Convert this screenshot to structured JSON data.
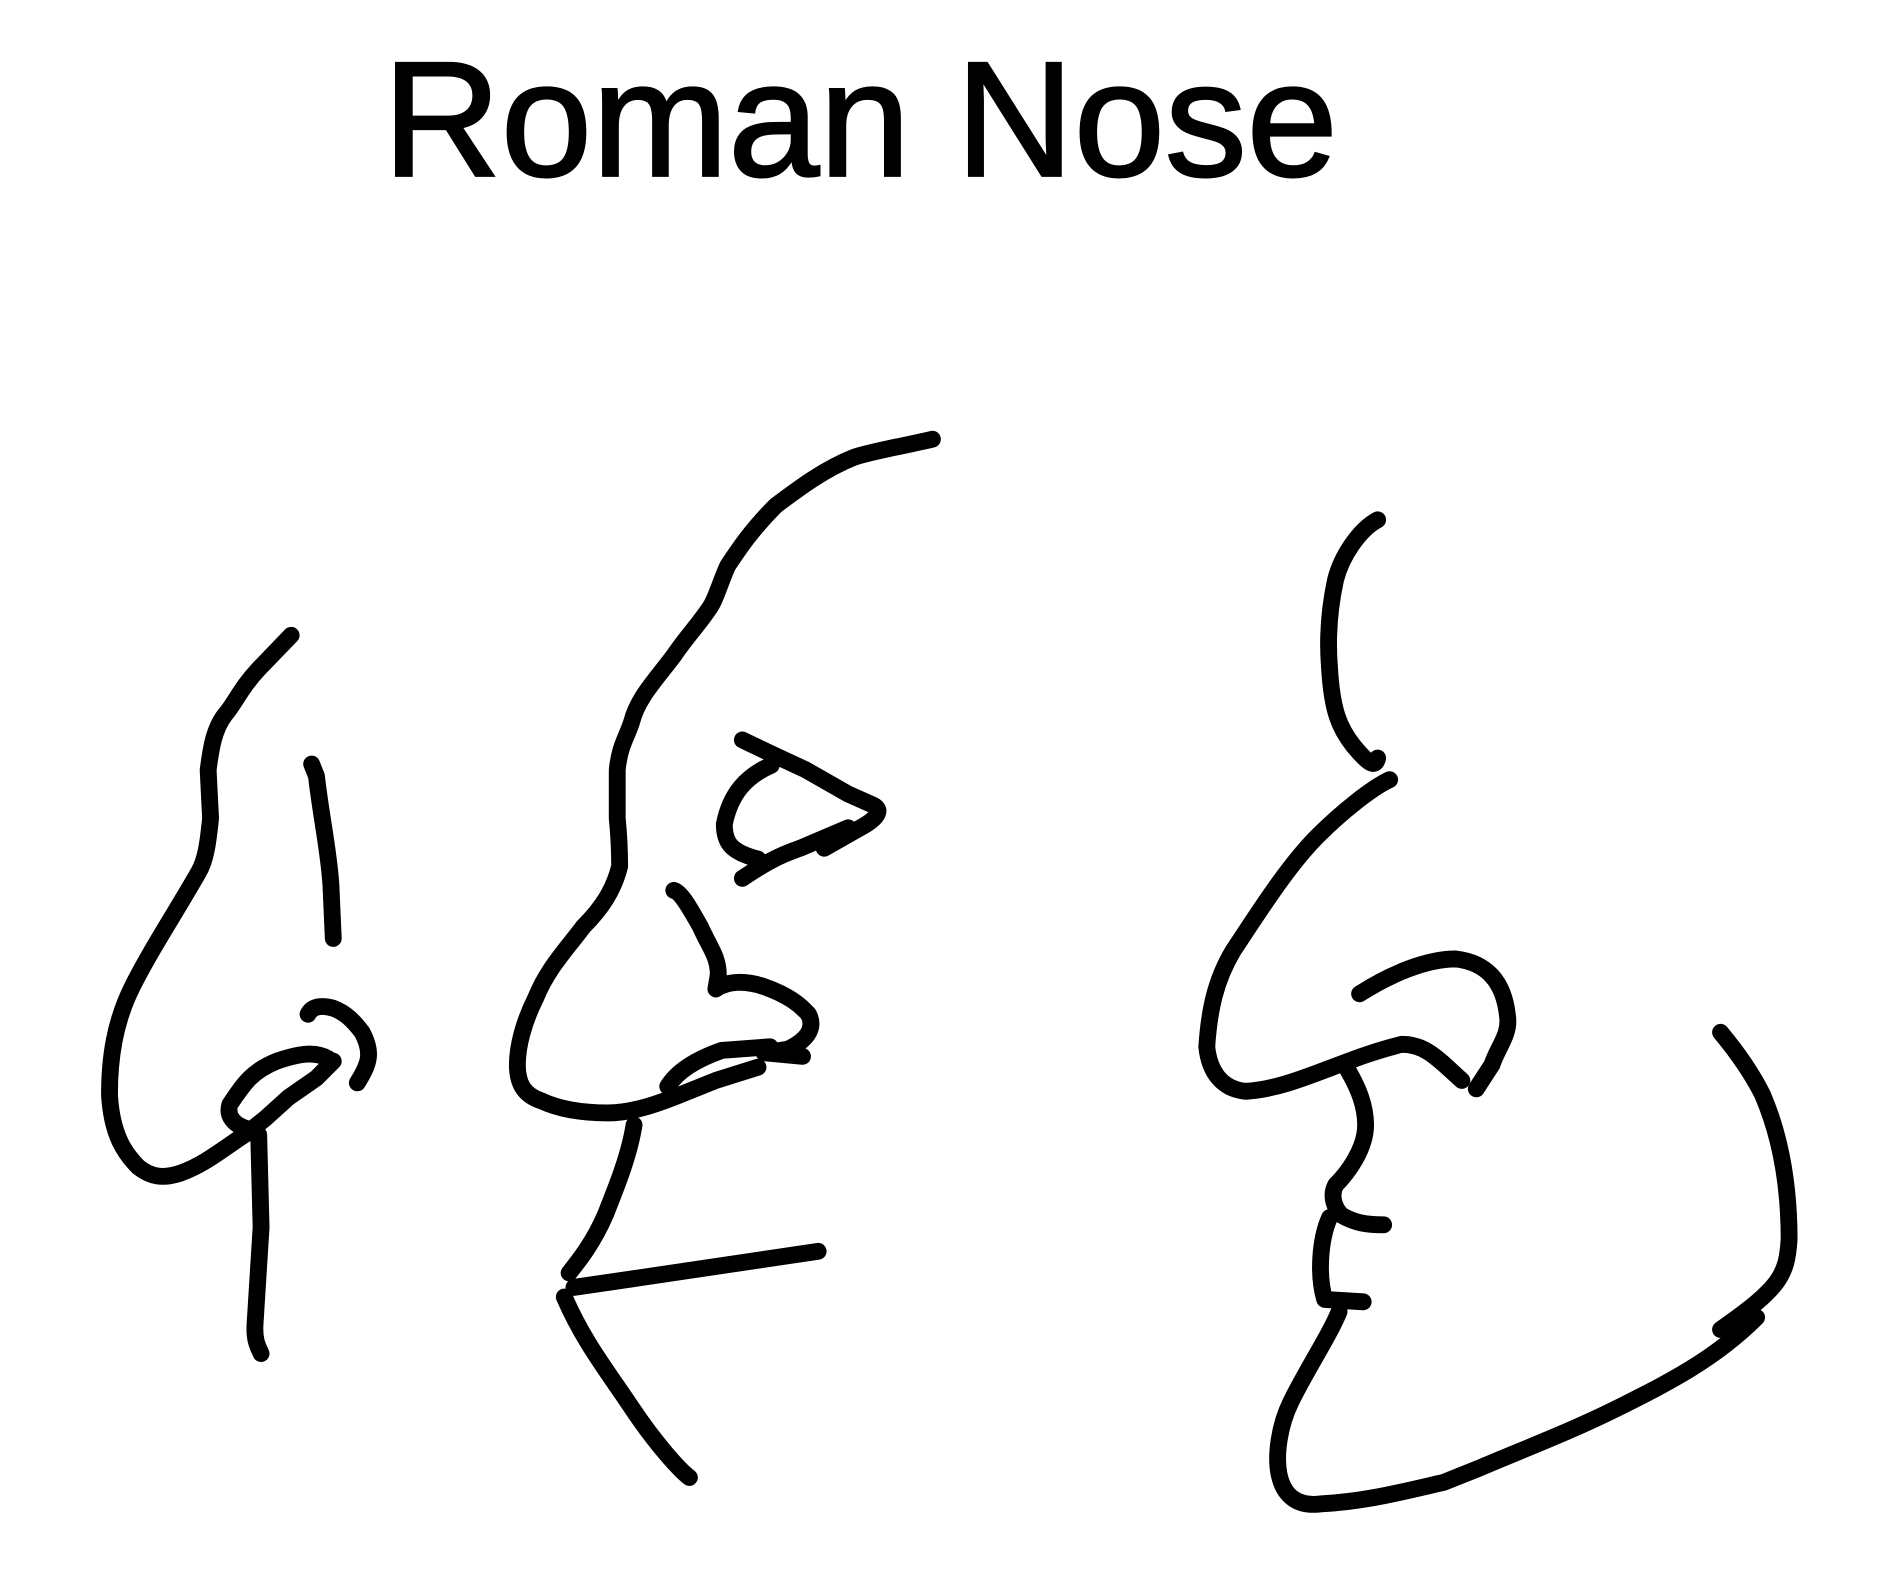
{
  "title": "Roman Nose"
}
